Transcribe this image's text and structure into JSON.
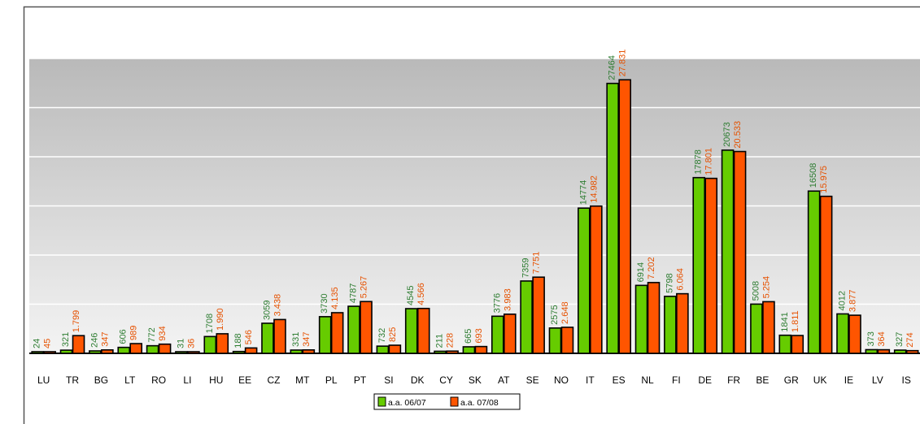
{
  "chart_data": {
    "type": "bar",
    "categories": [
      "LU",
      "TR",
      "BG",
      "LT",
      "RO",
      "LI",
      "HU",
      "EE",
      "CZ",
      "MT",
      "PL",
      "PT",
      "SI",
      "DK",
      "CY",
      "SK",
      "AT",
      "SE",
      "NO",
      "IT",
      "ES",
      "NL",
      "FI",
      "DE",
      "FR",
      "BE",
      "GR",
      "UK",
      "IE",
      "LV",
      "IS"
    ],
    "series": [
      {
        "name": "a.a. 06/07",
        "color": "#66cc00",
        "values": [
          24,
          321,
          246,
          606,
          772,
          31,
          1708,
          188,
          3059,
          331,
          3730,
          4787,
          732,
          4545,
          211,
          665,
          3776,
          7359,
          2575,
          14774,
          27464,
          6914,
          5798,
          17878,
          20673,
          5008,
          1841,
          16508,
          4012,
          373,
          327
        ],
        "labels": [
          "24",
          "321",
          "246",
          "606",
          "772",
          "31",
          "1708",
          "188",
          "3059",
          "331",
          "3730",
          "4787",
          "732",
          "4545",
          "211",
          "665",
          "3776",
          "7359",
          "2575",
          "14774",
          "27464",
          "6914",
          "5798",
          "17878",
          "20673",
          "5008",
          "1841",
          "16508",
          "4012",
          "373",
          "327"
        ]
      },
      {
        "name": "a.a. 07/08",
        "color": "#ff5500",
        "values": [
          45,
          1799,
          347,
          989,
          934,
          36,
          1990,
          546,
          3438,
          347,
          4135,
          5267,
          825,
          4566,
          228,
          693,
          3983,
          7751,
          2648,
          14982,
          27831,
          7202,
          6064,
          17801,
          20533,
          5254,
          1811,
          15975,
          3877,
          364,
          274
        ],
        "labels": [
          "45",
          "1.799",
          "347",
          "989",
          "934",
          "36",
          "1.990",
          "546",
          "3.438",
          "347",
          "4.135",
          "5.267",
          "825",
          "4.566",
          "228",
          "693",
          "3.983",
          "7.751",
          "2.648",
          "14.982",
          "27.831",
          "7.202",
          "6.064",
          "17.801",
          "20.533",
          "5.254",
          "1.811",
          "15.975",
          "3.877",
          "364",
          "274"
        ]
      }
    ],
    "ylim": [
      0,
      30000
    ],
    "grid": true,
    "legend_position": "bottom-center",
    "title": "",
    "xlabel": "",
    "ylabel": ""
  }
}
